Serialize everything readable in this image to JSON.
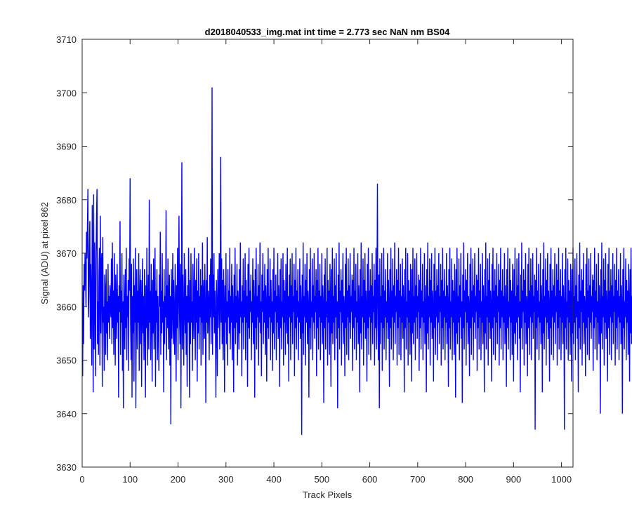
{
  "chart_data": {
    "type": "line",
    "title": "d2018040533_img.mat int time = 2.773 sec  NaN nm BS04",
    "xlabel": "Track Pixels",
    "ylabel": "Signal (ADU) at pixel 862",
    "xlim": [
      0,
      1024
    ],
    "ylim": [
      3630,
      3710
    ],
    "x_ticks": [
      0,
      100,
      200,
      300,
      400,
      500,
      600,
      700,
      800,
      900,
      1000
    ],
    "y_ticks": [
      3630,
      3640,
      3650,
      3660,
      3670,
      3680,
      3690,
      3700,
      3710
    ],
    "grid": false,
    "legend": "none",
    "series": [
      {
        "color": "#0000ff",
        "x_start": 1,
        "x_step": 1,
        "values_note_is_ordered_by_x": true,
        "values": [
          3647,
          3664,
          3653,
          3668,
          3663,
          3670,
          3666,
          3660,
          3674,
          3669,
          3675,
          3682,
          3658,
          3662,
          3671,
          3676,
          3654,
          3668,
          3661,
          3649,
          3679,
          3665,
          3644,
          3681,
          3652,
          3672,
          3662,
          3647,
          3669,
          3677,
          3682,
          3653,
          3661,
          3651,
          3666,
          3671,
          3649,
          3677,
          3655,
          3668,
          3670,
          3645,
          3673,
          3657,
          3660,
          3648,
          3666,
          3663,
          3651,
          3667,
          3655,
          3661,
          3650,
          3668,
          3657,
          3662,
          3654,
          3664,
          3660,
          3658,
          3669,
          3653,
          3672,
          3656,
          3663,
          3651,
          3670,
          3660,
          3649,
          3666,
          3661,
          3654,
          3668,
          3657,
          3662,
          3643,
          3664,
          3659,
          3676,
          3651,
          3663,
          3657,
          3670,
          3648,
          3661,
          3641,
          3666,
          3660,
          3652,
          3667,
          3656,
          3671,
          3650,
          3662,
          3658,
          3665,
          3648,
          3669,
          3663,
          3684,
          3657,
          3650,
          3668,
          3643,
          3662,
          3655,
          3669,
          3646,
          3664,
          3657,
          3671,
          3641,
          3660,
          3667,
          3652,
          3663,
          3657,
          3670,
          3648,
          3661,
          3667,
          3653,
          3665,
          3645,
          3660,
          3669,
          3655,
          3662,
          3650,
          3667,
          3658,
          3643,
          3664,
          3656,
          3671,
          3649,
          3661,
          3666,
          3652,
          3680,
          3657,
          3663,
          3650,
          3668,
          3660,
          3646,
          3665,
          3655,
          3669,
          3652,
          3661,
          3671,
          3645,
          3663,
          3657,
          3667,
          3650,
          3662,
          3657,
          3648,
          3666,
          3660,
          3674,
          3651,
          3663,
          3655,
          3670,
          3657,
          3661,
          3644,
          3667,
          3653,
          3662,
          3658,
          3678,
          3650,
          3664,
          3656,
          3669,
          3652,
          3661,
          3666,
          3649,
          3662,
          3638,
          3667,
          3654,
          3660,
          3670,
          3653,
          3665,
          3657,
          3651,
          3668,
          3660,
          3646,
          3664,
          3656,
          3671,
          3650,
          3663,
          3677,
          3659,
          3653,
          3668,
          3641,
          3661,
          3687,
          3652,
          3666,
          3658,
          3649,
          3670,
          3660,
          3655,
          3667,
          3651,
          3662,
          3645,
          3664,
          3657,
          3671,
          3659,
          3643,
          3665,
          3653,
          3670,
          3657,
          3661,
          3648,
          3668,
          3659,
          3654,
          3671,
          3662,
          3650,
          3665,
          3657,
          3669,
          3646,
          3663,
          3655,
          3670,
          3652,
          3662,
          3658,
          3667,
          3649,
          3664,
          3657,
          3672,
          3651,
          3662,
          3665,
          3654,
          3668,
          3659,
          3642,
          3665,
          3657,
          3673,
          3655,
          3663,
          3661,
          3650,
          3666,
          3658,
          3669,
          3653,
          3662,
          3701,
          3651,
          3666,
          3658,
          3670,
          3655,
          3663,
          3657,
          3643,
          3665,
          3660,
          3647,
          3667,
          3656,
          3662,
          3670,
          3652,
          3661,
          3688,
          3657,
          3669,
          3653,
          3665,
          3650,
          3667,
          3660,
          3644,
          3664,
          3657,
          3670,
          3653,
          3661,
          3649,
          3667,
          3658,
          3663,
          3655,
          3671,
          3652,
          3662,
          3657,
          3668,
          3650,
          3664,
          3659,
          3644,
          3666,
          3656,
          3671,
          3653,
          3662,
          3657,
          3668,
          3649,
          3663,
          3660,
          3652,
          3667,
          3655,
          3672,
          3658,
          3661,
          3647,
          3664,
          3657,
          3669,
          3652,
          3663,
          3658,
          3670,
          3650,
          3665,
          3657,
          3662,
          3645,
          3668,
          3656,
          3671,
          3654,
          3663,
          3659,
          3666,
          3650,
          3661,
          3657,
          3669,
          3653,
          3665,
          3660,
          3643,
          3667,
          3656,
          3671,
          3652,
          3662,
          3658,
          3668,
          3649,
          3664,
          3657,
          3672,
          3655,
          3661,
          3647,
          3666,
          3659,
          3670,
          3653,
          3663,
          3657,
          3668,
          3651,
          3664,
          3660,
          3646,
          3667,
          3656,
          3671,
          3654,
          3662,
          3658,
          3669,
          3650,
          3665,
          3657,
          3661,
          3648,
          3667,
          3655,
          3671,
          3652,
          3663,
          3659,
          3666,
          3650,
          3662,
          3657,
          3670,
          3654,
          3664,
          3660,
          3645,
          3667,
          3656,
          3669,
          3652,
          3661,
          3658,
          3670,
          3649,
          3665,
          3657,
          3663,
          3651,
          3668,
          3660,
          3655,
          3671,
          3653,
          3662,
          3646,
          3666,
          3658,
          3669,
          3650,
          3664,
          3657,
          3670,
          3653,
          3662,
          3659,
          3668,
          3647,
          3665,
          3656,
          3671,
          3652,
          3663,
          3658,
          3667,
          3650,
          3661,
          3657,
          3669,
          3654,
          3664,
          3660,
          3636,
          3666,
          3655,
          3672,
          3651,
          3662,
          3658,
          3668,
          3649,
          3665,
          3657,
          3670,
          3653,
          3663,
          3660,
          3643,
          3667,
          3656,
          3671,
          3652,
          3661,
          3658,
          3669,
          3650,
          3664,
          3657,
          3670,
          3654,
          3662,
          3659,
          3667,
          3647,
          3665,
          3656,
          3671,
          3652,
          3663,
          3658,
          3668,
          3650,
          3662,
          3657,
          3670,
          3653,
          3664,
          3660,
          3642,
          3666,
          3656,
          3669,
          3652,
          3661,
          3658,
          3671,
          3649,
          3665,
          3657,
          3663,
          3651,
          3668,
          3660,
          3645,
          3667,
          3655,
          3671,
          3653,
          3662,
          3657,
          3669,
          3650,
          3664,
          3658,
          3670,
          3654,
          3661,
          3641,
          3666,
          3656,
          3672,
          3652,
          3663,
          3659,
          3667,
          3649,
          3665,
          3657,
          3670,
          3653,
          3662,
          3660,
          3647,
          3668,
          3656,
          3671,
          3651,
          3663,
          3658,
          3669,
          3650,
          3664,
          3657,
          3670,
          3654,
          3662,
          3659,
          3666,
          3648,
          3665,
          3656,
          3671,
          3652,
          3663,
          3658,
          3668,
          3650,
          3661,
          3657,
          3670,
          3653,
          3664,
          3660,
          3644,
          3667,
          3655,
          3672,
          3652,
          3662,
          3658,
          3669,
          3649,
          3665,
          3657,
          3670,
          3654,
          3663,
          3660,
          3646,
          3668,
          3656,
          3671,
          3651,
          3663,
          3658,
          3667,
          3650,
          3664,
          3657,
          3670,
          3653,
          3662,
          3659,
          3668,
          3649,
          3665,
          3656,
          3671,
          3652,
          3663,
          3683,
          3657,
          3650,
          3666,
          3641,
          3669,
          3653,
          3662,
          3657,
          3670,
          3648,
          3664,
          3656,
          3671,
          3652,
          3663,
          3658,
          3667,
          3650,
          3661,
          3657,
          3670,
          3654,
          3665,
          3660,
          3645,
          3667,
          3656,
          3671,
          3652,
          3663,
          3658,
          3669,
          3650,
          3664,
          3657,
          3672,
          3653,
          3662,
          3659,
          3667,
          3649,
          3665,
          3656,
          3671,
          3651,
          3663,
          3658,
          3668,
          3650,
          3662,
          3657,
          3669,
          3654,
          3664,
          3660,
          3644,
          3667,
          3656,
          3671,
          3652,
          3661,
          3658,
          3670,
          3649,
          3665,
          3657,
          3663,
          3651,
          3668,
          3660,
          3646,
          3667,
          3655,
          3671,
          3653,
          3662,
          3657,
          3669,
          3650,
          3664,
          3658,
          3670,
          3654,
          3662,
          3659,
          3666,
          3648,
          3665,
          3656,
          3671,
          3652,
          3663,
          3658,
          3668,
          3650,
          3661,
          3657,
          3670,
          3653,
          3664,
          3660,
          3644,
          3667,
          3655,
          3672,
          3652,
          3662,
          3658,
          3669,
          3649,
          3665,
          3657,
          3670,
          3654,
          3663,
          3660,
          3646,
          3668,
          3656,
          3671,
          3651,
          3663,
          3658,
          3667,
          3650,
          3664,
          3657,
          3670,
          3653,
          3662,
          3659,
          3668,
          3649,
          3665,
          3656,
          3671,
          3652,
          3663,
          3658,
          3667,
          3650,
          3662,
          3657,
          3670,
          3653,
          3664,
          3660,
          3645,
          3667,
          3656,
          3671,
          3652,
          3661,
          3658,
          3669,
          3650,
          3665,
          3657,
          3663,
          3651,
          3668,
          3660,
          3643,
          3667,
          3655,
          3671,
          3653,
          3662,
          3657,
          3669,
          3650,
          3664,
          3658,
          3670,
          3654,
          3661,
          3642,
          3666,
          3656,
          3672,
          3652,
          3663,
          3659,
          3667,
          3649,
          3665,
          3657,
          3670,
          3653,
          3662,
          3660,
          3647,
          3668,
          3656,
          3671,
          3651,
          3663,
          3658,
          3669,
          3650,
          3664,
          3657,
          3670,
          3654,
          3662,
          3659,
          3666,
          3648,
          3665,
          3656,
          3671,
          3652,
          3663,
          3658,
          3668,
          3650,
          3661,
          3657,
          3670,
          3653,
          3664,
          3660,
          3644,
          3667,
          3655,
          3672,
          3652,
          3662,
          3658,
          3669,
          3649,
          3665,
          3657,
          3670,
          3654,
          3663,
          3660,
          3646,
          3668,
          3656,
          3671,
          3651,
          3663,
          3658,
          3667,
          3650,
          3664,
          3657,
          3670,
          3653,
          3662,
          3659,
          3668,
          3649,
          3665,
          3656,
          3671,
          3652,
          3663,
          3658,
          3667,
          3650,
          3662,
          3657,
          3670,
          3653,
          3664,
          3660,
          3645,
          3667,
          3656,
          3671,
          3652,
          3661,
          3658,
          3669,
          3650,
          3665,
          3657,
          3663,
          3651,
          3668,
          3660,
          3646,
          3667,
          3655,
          3671,
          3653,
          3662,
          3657,
          3669,
          3650,
          3664,
          3658,
          3670,
          3654,
          3661,
          3644,
          3666,
          3656,
          3672,
          3652,
          3663,
          3659,
          3667,
          3649,
          3665,
          3657,
          3670,
          3653,
          3662,
          3660,
          3647,
          3668,
          3656,
          3671,
          3651,
          3663,
          3658,
          3669,
          3650,
          3664,
          3657,
          3670,
          3654,
          3662,
          3659,
          3666,
          3637,
          3665,
          3656,
          3671,
          3652,
          3663,
          3658,
          3668,
          3650,
          3661,
          3657,
          3670,
          3653,
          3664,
          3660,
          3644,
          3667,
          3655,
          3672,
          3652,
          3662,
          3658,
          3669,
          3649,
          3665,
          3657,
          3670,
          3654,
          3663,
          3660,
          3646,
          3668,
          3656,
          3671,
          3651,
          3663,
          3658,
          3667,
          3650,
          3664,
          3657,
          3670,
          3653,
          3662,
          3659,
          3668,
          3649,
          3665,
          3656,
          3671,
          3652,
          3663,
          3658,
          3667,
          3650,
          3662,
          3657,
          3670,
          3653,
          3664,
          3660,
          3637,
          3667,
          3656,
          3671,
          3652,
          3661,
          3658,
          3669,
          3650,
          3665,
          3657,
          3663,
          3651,
          3668,
          3660,
          3646,
          3667,
          3655,
          3671,
          3653,
          3662,
          3657,
          3669,
          3650,
          3664,
          3658,
          3670,
          3654,
          3661,
          3644,
          3666,
          3656,
          3672,
          3652,
          3663,
          3659,
          3667,
          3649,
          3665,
          3657,
          3670,
          3653,
          3662,
          3660,
          3647,
          3668,
          3656,
          3671,
          3651,
          3663,
          3658,
          3669,
          3650,
          3664,
          3657,
          3670,
          3654,
          3662,
          3659,
          3666,
          3648,
          3665,
          3656,
          3671,
          3652,
          3663,
          3658,
          3668,
          3650,
          3661,
          3657,
          3670,
          3653,
          3664,
          3660,
          3640,
          3667,
          3655,
          3672,
          3652,
          3662,
          3658,
          3669,
          3649,
          3665,
          3657,
          3670,
          3654,
          3663,
          3660,
          3646,
          3668,
          3656,
          3671,
          3651,
          3663,
          3658,
          3667,
          3650,
          3664,
          3657,
          3670,
          3653,
          3662,
          3659,
          3668,
          3649,
          3665,
          3656,
          3671,
          3652,
          3663,
          3658,
          3667,
          3650,
          3662,
          3657,
          3670,
          3653,
          3664,
          3660,
          3640,
          3667,
          3656,
          3671,
          3652,
          3661,
          3658,
          3669,
          3650,
          3665,
          3657,
          3663,
          3651,
          3668,
          3660,
          3646,
          3667,
          3655,
          3671,
          3653,
          3662,
          3657
        ]
      }
    ]
  }
}
